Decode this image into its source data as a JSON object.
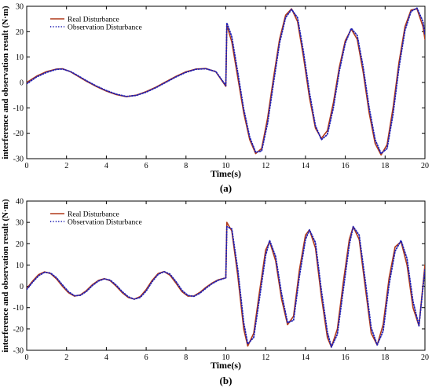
{
  "chart_data": [
    {
      "type": "line",
      "panel_label": "(a)",
      "xlabel": "Time(s)",
      "ylabel": "interference and observation result (N·m)",
      "xlim": [
        0,
        20
      ],
      "ylim": [
        -30,
        30
      ],
      "xticks": [
        0,
        2,
        4,
        6,
        8,
        10,
        12,
        14,
        16,
        18,
        20
      ],
      "yticks": [
        -30,
        -20,
        -10,
        0,
        10,
        20,
        30
      ],
      "legend_position": "top-left",
      "series": [
        {
          "name": "Real Disturbance",
          "style": "solid",
          "color": "#b03a1a",
          "x": [
            0,
            0.5,
            1.0,
            1.5,
            1.8,
            2.2,
            2.5,
            3.0,
            3.5,
            4.0,
            4.5,
            5.0,
            5.5,
            6.0,
            6.5,
            7.0,
            7.5,
            8.0,
            8.5,
            9.0,
            9.5,
            10.0,
            10.05,
            10.3,
            10.6,
            10.9,
            11.2,
            11.5,
            11.8,
            12.1,
            12.4,
            12.7,
            13.0,
            13.3,
            13.6,
            13.9,
            14.2,
            14.5,
            14.8,
            15.1,
            15.4,
            15.7,
            16.0,
            16.3,
            16.6,
            16.9,
            17.2,
            17.5,
            17.8,
            18.1,
            18.4,
            18.7,
            19.0,
            19.3,
            19.6,
            19.9,
            20.0
          ],
          "y": [
            0,
            2.5,
            4.3,
            5.3,
            5.4,
            4.2,
            2.8,
            0.5,
            -1.6,
            -3.4,
            -4.8,
            -5.6,
            -5.0,
            -3.6,
            -1.8,
            0.3,
            2.4,
            4.2,
            5.3,
            5.5,
            4.2,
            -1.5,
            22.5,
            16.0,
            2.0,
            -12.0,
            -22.5,
            -28.0,
            -26.0,
            -14.0,
            2.0,
            17.0,
            26.5,
            29.0,
            24.0,
            10.0,
            -6.0,
            -18.0,
            -22.0,
            -19.0,
            -8.0,
            6.0,
            16.5,
            21.0,
            17.0,
            4.0,
            -12.0,
            -24.0,
            -28.5,
            -24.5,
            -10.0,
            8.0,
            22.0,
            28.5,
            29.0,
            22.0,
            17.0
          ]
        },
        {
          "name": "Observation Disturbance",
          "style": "dotted",
          "color": "#1f1fb4",
          "x": [
            0,
            0.5,
            1.0,
            1.5,
            1.8,
            2.2,
            2.5,
            3.0,
            3.5,
            4.0,
            4.5,
            5.0,
            5.5,
            6.0,
            6.5,
            7.0,
            7.5,
            8.0,
            8.5,
            9.0,
            9.5,
            10.0,
            10.05,
            10.3,
            10.6,
            10.9,
            11.2,
            11.5,
            11.8,
            12.1,
            12.4,
            12.7,
            13.0,
            13.3,
            13.6,
            13.9,
            14.2,
            14.5,
            14.8,
            15.1,
            15.4,
            15.7,
            16.0,
            16.3,
            16.6,
            16.9,
            17.2,
            17.5,
            17.8,
            18.1,
            18.4,
            18.7,
            19.0,
            19.3,
            19.6,
            19.9,
            20.0
          ],
          "y": [
            -0.5,
            2.2,
            4.0,
            5.2,
            5.3,
            4.3,
            3.0,
            0.7,
            -1.4,
            -3.2,
            -4.6,
            -5.5,
            -5.1,
            -3.8,
            -2.0,
            0.1,
            2.2,
            4.0,
            5.2,
            5.4,
            4.3,
            -1.2,
            23.5,
            18.0,
            4.0,
            -10.5,
            -21.5,
            -27.5,
            -27.0,
            -16.0,
            0.0,
            15.5,
            25.5,
            28.8,
            25.5,
            12.0,
            -4.0,
            -17.0,
            -22.5,
            -20.5,
            -10.0,
            4.5,
            15.5,
            21.3,
            18.5,
            6.0,
            -10.0,
            -22.5,
            -28.0,
            -26.0,
            -12.5,
            6.0,
            20.5,
            28.0,
            29.3,
            24.0,
            19.0
          ]
        }
      ]
    },
    {
      "type": "line",
      "panel_label": "(b)",
      "xlabel": "Time(s)",
      "ylabel": "interference and observation result (N·m)",
      "xlim": [
        0,
        20
      ],
      "ylim": [
        -30,
        40
      ],
      "xticks": [
        0,
        2,
        4,
        6,
        8,
        10,
        12,
        14,
        16,
        18,
        20
      ],
      "yticks": [
        -30,
        -20,
        -10,
        0,
        10,
        20,
        30,
        40
      ],
      "legend_position": "top-left",
      "series": [
        {
          "name": "Real Disturbance",
          "style": "solid",
          "color": "#b03a1a",
          "x": [
            0,
            0.3,
            0.6,
            0.9,
            1.2,
            1.5,
            1.8,
            2.1,
            2.4,
            2.7,
            3.0,
            3.3,
            3.6,
            3.9,
            4.2,
            4.5,
            4.8,
            5.1,
            5.4,
            5.7,
            6.0,
            6.3,
            6.6,
            6.9,
            7.2,
            7.5,
            7.8,
            8.1,
            8.4,
            8.7,
            9.0,
            9.3,
            9.6,
            10.0,
            10.05,
            10.3,
            10.6,
            10.9,
            11.1,
            11.4,
            11.7,
            12.0,
            12.2,
            12.5,
            12.8,
            13.1,
            13.4,
            13.7,
            14.0,
            14.2,
            14.5,
            14.8,
            15.1,
            15.3,
            15.6,
            15.9,
            16.2,
            16.4,
            16.7,
            17.0,
            17.3,
            17.6,
            17.9,
            18.2,
            18.5,
            18.8,
            19.1,
            19.4,
            19.7,
            20.0
          ],
          "y": [
            -1.0,
            2.5,
            5.5,
            6.8,
            6.0,
            3.5,
            0.0,
            -3.0,
            -4.6,
            -4.0,
            -2.0,
            0.8,
            2.8,
            3.6,
            2.6,
            0.0,
            -3.0,
            -5.2,
            -6.0,
            -4.8,
            -1.5,
            2.8,
            6.0,
            6.9,
            5.2,
            1.5,
            -2.5,
            -4.6,
            -4.5,
            -2.8,
            -0.5,
            1.5,
            3.0,
            4.0,
            30.0,
            26.0,
            5.0,
            -20.0,
            -28.0,
            -22.0,
            -2.0,
            17.0,
            21.0,
            12.0,
            -6.0,
            -18.0,
            -14.0,
            8.0,
            24.0,
            26.5,
            18.0,
            -5.0,
            -24.0,
            -28.5,
            -20.0,
            2.0,
            22.0,
            28.0,
            22.0,
            0.0,
            -22.0,
            -27.5,
            -18.0,
            4.0,
            18.5,
            21.0,
            10.0,
            -10.0,
            -18.5,
            10.0
          ]
        },
        {
          "name": "Observation Disturbance",
          "style": "dotted",
          "color": "#1f1fb4",
          "x": [
            0,
            0.3,
            0.6,
            0.9,
            1.2,
            1.5,
            1.8,
            2.1,
            2.4,
            2.7,
            3.0,
            3.3,
            3.6,
            3.9,
            4.2,
            4.5,
            4.8,
            5.1,
            5.4,
            5.7,
            6.0,
            6.3,
            6.6,
            6.9,
            7.2,
            7.5,
            7.8,
            8.1,
            8.4,
            8.7,
            9.0,
            9.3,
            9.6,
            10.0,
            10.05,
            10.3,
            10.6,
            10.9,
            11.1,
            11.4,
            11.7,
            12.0,
            12.2,
            12.5,
            12.8,
            13.1,
            13.4,
            13.7,
            14.0,
            14.2,
            14.5,
            14.8,
            15.1,
            15.3,
            15.6,
            15.9,
            16.2,
            16.4,
            16.7,
            17.0,
            17.3,
            17.6,
            17.9,
            18.2,
            18.5,
            18.8,
            19.1,
            19.4,
            19.7,
            20.0
          ],
          "y": [
            -1.5,
            2.0,
            5.0,
            6.6,
            6.2,
            4.0,
            0.6,
            -2.5,
            -4.4,
            -4.2,
            -2.4,
            0.4,
            2.5,
            3.5,
            2.9,
            0.5,
            -2.5,
            -4.9,
            -6.0,
            -5.2,
            -2.2,
            2.2,
            5.6,
            6.9,
            5.7,
            2.2,
            -1.9,
            -4.3,
            -4.7,
            -3.2,
            -0.9,
            1.2,
            2.8,
            4.0,
            28.0,
            27.0,
            8.0,
            -17.0,
            -27.0,
            -24.0,
            -5.0,
            14.5,
            21.5,
            14.0,
            -3.5,
            -17.0,
            -16.0,
            5.0,
            22.0,
            26.5,
            20.5,
            -2.0,
            -21.5,
            -28.5,
            -22.5,
            -1.5,
            19.5,
            28.0,
            24.0,
            3.0,
            -19.5,
            -27.5,
            -21.0,
            1.0,
            16.5,
            21.5,
            13.0,
            -7.0,
            -18.5,
            8.0
          ]
        }
      ]
    }
  ]
}
